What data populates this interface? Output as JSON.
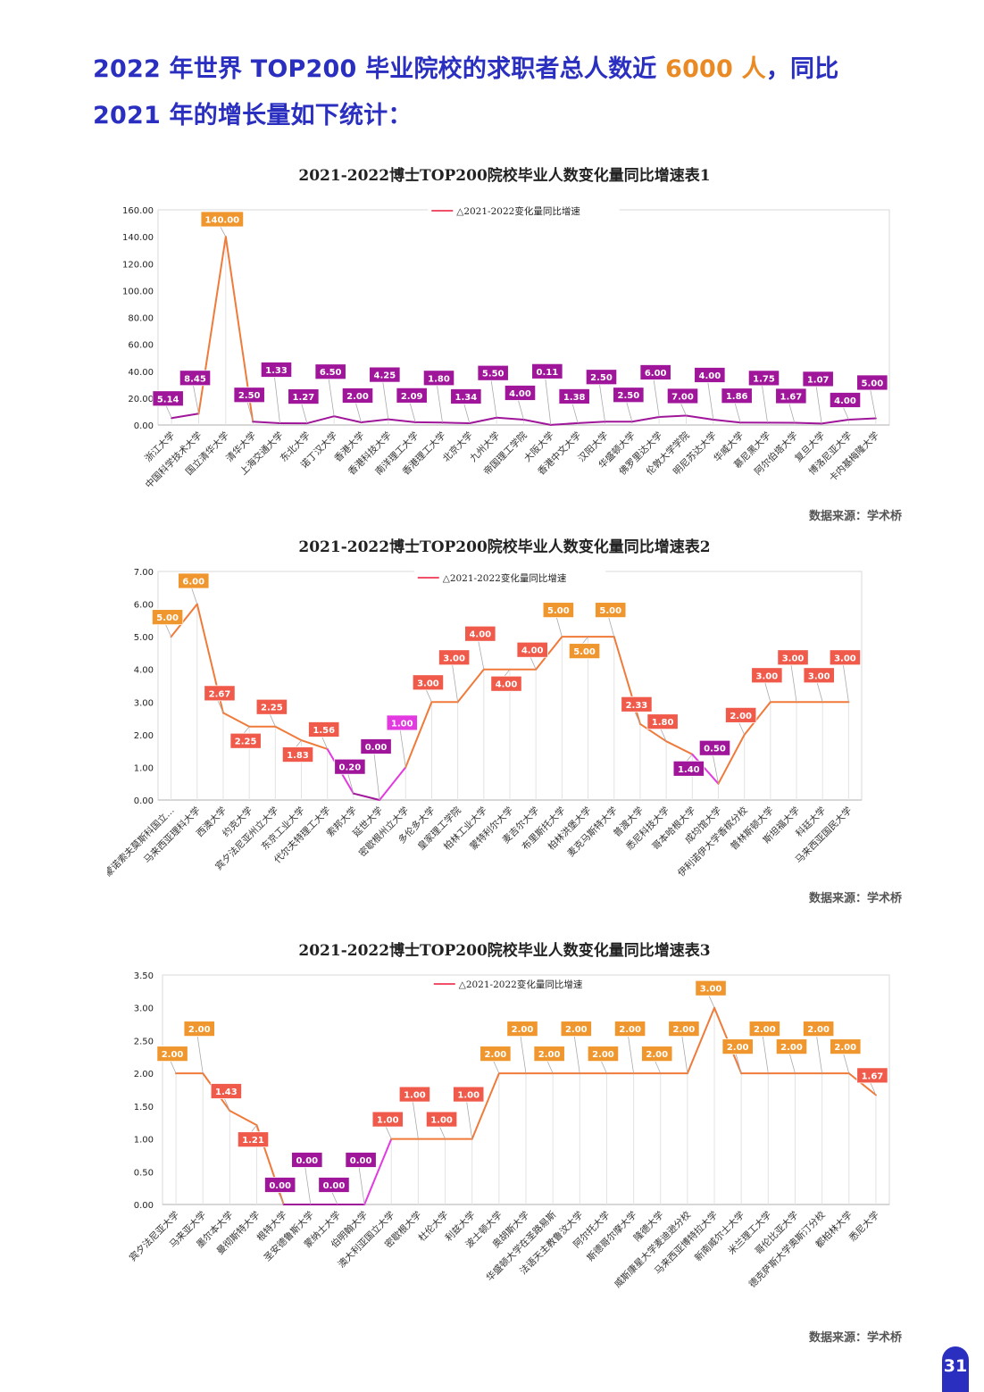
{
  "headline": {
    "line1_prefix": "2022 年世界 TOP200 毕业院校的求职者总人数近 ",
    "line1_highlight": "6000 人",
    "line1_suffix": "，同比",
    "line2": "2021 年的增长量如下统计："
  },
  "colors": {
    "headline": "#2a2fc0",
    "highlight": "#ea8a25",
    "high": "#f0962e",
    "mid": "#f05a4a",
    "low": "#a0169a",
    "pink": "#e23ae0"
  },
  "source_label": "数据来源：学术桥",
  "page_number": "31",
  "chart_data": [
    {
      "type": "line",
      "title": "2021-2022博士TOP200院校毕业人数变化量同比增速表1",
      "legend": "△2021-2022变化量同比增速",
      "legend_position": "top-center",
      "grid": true,
      "ylim": [
        0,
        160
      ],
      "yticks": [
        "0.00",
        "20.00",
        "40.00",
        "60.00",
        "80.00",
        "100.00",
        "120.00",
        "140.00",
        "160.00"
      ],
      "ytick_values": [
        0,
        20,
        40,
        60,
        80,
        100,
        120,
        140,
        160
      ],
      "categories": [
        "浙江大学",
        "中国科学技术大学",
        "国立清华大学",
        "清华大学",
        "上海交通大学",
        "东北大学",
        "诺丁汉大学",
        "香港大学",
        "香港科技大学",
        "南洋理工大学",
        "香港理工大学",
        "北京大学",
        "九州大学",
        "帝国理工学院",
        "大阪大学",
        "香港中文大学",
        "汉阳大学",
        "华盛顿大学",
        "佛罗里达大学",
        "伦敦大学学院",
        "明尼苏达大学",
        "华威大学",
        "慕尼黑大学",
        "阿尔伯塔大学",
        "复旦大学",
        "博洛尼亚大学",
        "卡内基梅隆大学"
      ],
      "values": [
        5.14,
        8.45,
        140.0,
        2.5,
        1.33,
        1.27,
        6.5,
        2.0,
        4.25,
        2.09,
        1.8,
        1.34,
        5.5,
        4.0,
        0.11,
        1.38,
        2.5,
        2.5,
        6.0,
        7.0,
        4.0,
        1.86,
        1.75,
        1.67,
        1.07,
        4.0,
        5.0
      ],
      "labels": [
        "5.14",
        "8.45",
        "140.00",
        "2.50",
        "1.33",
        "1.27",
        "6.50",
        "2.00",
        "4.25",
        "2.09",
        "1.80",
        "1.34",
        "5.50",
        "4.00",
        "0.11",
        "1.38",
        "2.50",
        "2.50",
        "6.00",
        "7.00",
        "4.00",
        "1.86",
        "1.75",
        "1.67",
        "1.07",
        "4.00",
        "5.00"
      ]
    },
    {
      "type": "line",
      "title": "2021-2022博士TOP200院校毕业人数变化量同比增速表2",
      "legend": "△2021-2022变化量同比增速",
      "legend_position": "top-center",
      "grid": true,
      "ylim": [
        0,
        7
      ],
      "yticks": [
        "0.00",
        "1.00",
        "2.00",
        "3.00",
        "4.00",
        "5.00",
        "6.00",
        "7.00"
      ],
      "ytick_values": [
        0,
        1,
        2,
        3,
        4,
        5,
        6,
        7
      ],
      "categories": [
        "罗蒙诺索夫莫斯科国立…",
        "马来西亚理科大学",
        "西澳大学",
        "约克大学",
        "宾夕法尼亚州立大学",
        "东京工业大学",
        "代尔夫特理工大学",
        "索邦大学",
        "延世大学",
        "密歇根州立大学",
        "多伦多大学",
        "皇家理工学院",
        "柏林工业大学",
        "蒙特利尔大学",
        "麦吉尔大学",
        "布里斯托大学",
        "柏林洪堡大学",
        "麦克马斯特大学",
        "普渡大学",
        "悉尼科技大学",
        "哥本哈根大学",
        "成均馆大学",
        "伊利诺伊大学香槟分校",
        "普林斯顿大学",
        "斯坦福大学",
        "科廷大学",
        "马来西亚国民大学"
      ],
      "values": [
        5.0,
        6.0,
        2.67,
        2.25,
        2.25,
        1.83,
        1.56,
        0.2,
        0.0,
        1.0,
        3.0,
        3.0,
        4.0,
        4.0,
        4.0,
        5.0,
        5.0,
        5.0,
        2.33,
        1.8,
        1.4,
        0.5,
        2.0,
        3.0,
        3.0,
        3.0,
        3.0
      ],
      "labels": [
        "5.00",
        "6.00",
        "2.67",
        "2.25",
        "2.25",
        "1.83",
        "1.56",
        "0.20",
        "0.00",
        "1.00",
        "3.00",
        "3.00",
        "4.00",
        "4.00",
        "4.00",
        "5.00",
        "5.00",
        "5.00",
        "2.33",
        "1.80",
        "1.40",
        "0.50",
        "2.00",
        "3.00",
        "3.00",
        "3.00",
        "3.00"
      ]
    },
    {
      "type": "line",
      "title": "2021-2022博士TOP200院校毕业人数变化量同比增速表3",
      "legend": "△2021-2022变化量同比增速",
      "legend_position": "top-center",
      "grid": true,
      "ylim": [
        0,
        3.5
      ],
      "yticks": [
        "0.00",
        "0.50",
        "1.00",
        "1.50",
        "2.00",
        "2.50",
        "3.00",
        "3.50"
      ],
      "ytick_values": [
        0,
        0.5,
        1,
        1.5,
        2,
        2.5,
        3,
        3.5
      ],
      "categories": [
        "宾夕法尼亚大学",
        "马来亚大学",
        "墨尔本大学",
        "曼彻斯特大学",
        "根特大学",
        "圣安德鲁斯大学",
        "蒙纳士大学",
        "伯明翰大学",
        "澳大利亚国立大学",
        "密歇根大学",
        "杜伦大学",
        "利兹大学",
        "波士顿大学",
        "奥胡斯大学",
        "华盛顿大学在圣路易斯",
        "法语天主教鲁汶大学",
        "阿尔托大学",
        "斯德哥尔摩大学",
        "隆德大学",
        "威斯康星大学麦迪逊分校",
        "马来西亚博特拉大学",
        "新南威尔士大学",
        "米兰理工大学",
        "哥伦比亚大学",
        "德克萨斯大学奥斯汀分校",
        "都柏林大学",
        "悉尼大学"
      ],
      "values": [
        2.0,
        2.0,
        1.43,
        1.21,
        0.0,
        0.0,
        0.0,
        0.0,
        1.0,
        1.0,
        1.0,
        1.0,
        2.0,
        2.0,
        2.0,
        2.0,
        2.0,
        2.0,
        2.0,
        2.0,
        3.0,
        2.0,
        2.0,
        2.0,
        2.0,
        2.0,
        1.67
      ],
      "labels": [
        "2.00",
        "2.00",
        "1.43",
        "1.21",
        "0.00",
        "0.00",
        "0.00",
        "0.00",
        "1.00",
        "1.00",
        "1.00",
        "1.00",
        "2.00",
        "2.00",
        "2.00",
        "2.00",
        "2.00",
        "2.00",
        "2.00",
        "2.00",
        "3.00",
        "2.00",
        "2.00",
        "2.00",
        "2.00",
        "2.00",
        "1.67"
      ]
    }
  ]
}
